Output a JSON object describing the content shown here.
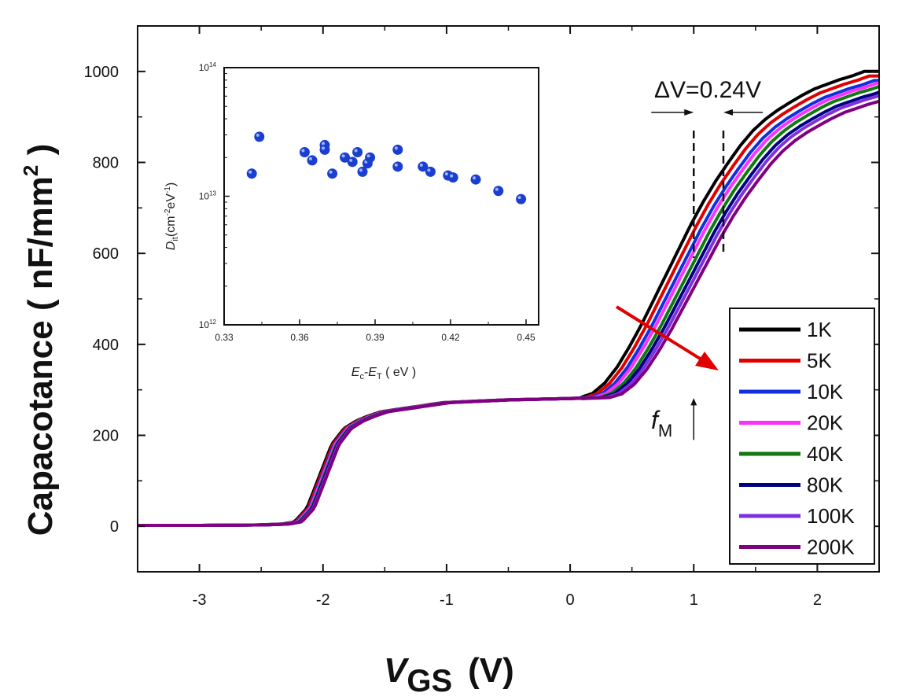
{
  "chart_data": {
    "type": "line",
    "xlabel_main": "V",
    "xlabel_sub": "GS",
    "xlabel_unit": "(V)",
    "ylabel_main": "Capacotance ( nF/mm",
    "ylabel_sup": "2",
    "ylabel_end": " )",
    "xlim": [
      -3.5,
      2.5
    ],
    "ylim": [
      -100,
      1100
    ],
    "x_ticks": [
      -3,
      -2,
      -1,
      0,
      1,
      2
    ],
    "y_ticks": [
      0,
      200,
      400,
      600,
      800,
      1000
    ],
    "legend_position": "bottom-right",
    "series": [
      {
        "name": "1K",
        "color": "#000000",
        "shift": -0.12,
        "top": 1000
      },
      {
        "name": "5K",
        "color": "#e00000",
        "shift": -0.08,
        "top": 990
      },
      {
        "name": "10K",
        "color": "#1030e0",
        "shift": -0.04,
        "top": 980
      },
      {
        "name": "20K",
        "color": "#ff30ff",
        "shift": -0.01,
        "top": 975
      },
      {
        "name": "40K",
        "color": "#107a10",
        "shift": 0.03,
        "top": 970
      },
      {
        "name": "80K",
        "color": "#000080",
        "shift": 0.06,
        "top": 960
      },
      {
        "name": "100K",
        "color": "#8030e0",
        "shift": 0.09,
        "top": 955
      },
      {
        "name": "200K",
        "color": "#800080",
        "shift": 0.12,
        "top": 945
      }
    ],
    "curve_model": {
      "x": [
        -3.5,
        -3.0,
        -2.5,
        -2.3,
        -2.2,
        -2.1,
        -2.0,
        -1.9,
        -1.8,
        -1.7,
        -1.6,
        -1.5,
        -1.2,
        -1.0,
        -0.5,
        0.0,
        0.2,
        0.3,
        0.4,
        0.5,
        0.6,
        0.7,
        0.8,
        0.9,
        1.0,
        1.1,
        1.2,
        1.3,
        1.4,
        1.5,
        1.6,
        1.7,
        1.8,
        1.9,
        2.0,
        2.1,
        2.2,
        2.3,
        2.4,
        2.5
      ],
      "y": [
        2,
        2,
        3,
        5,
        10,
        40,
        110,
        180,
        215,
        232,
        243,
        252,
        264,
        272,
        278,
        281,
        283,
        292,
        315,
        350,
        395,
        445,
        500,
        555,
        610,
        665,
        715,
        760,
        800,
        838,
        870,
        895,
        915,
        932,
        948,
        962,
        972,
        982,
        990,
        1000
      ]
    },
    "annotations": {
      "delta_v": "ΔV=0.24V",
      "delta_v_x1": 1.0,
      "delta_v_x2": 1.24,
      "fm_label": "f",
      "fm_sub": "M",
      "fm_x": 1.0
    },
    "inset": {
      "type": "scatter",
      "xlabel_a": "E",
      "xlabel_a_sub": "c",
      "xlabel_dash": "-",
      "xlabel_b": "E",
      "xlabel_b_sub": "T",
      "xlabel_unit": " ( eV )",
      "ylabel_a": "D",
      "ylabel_a_sub": "it",
      "ylabel_unit": "(cm",
      "ylabel_unit_sup1": "-2",
      "ylabel_unit_mid": "eV",
      "ylabel_unit_sup2": "-1",
      "ylabel_unit_end": ")",
      "xlim": [
        0.33,
        0.455
      ],
      "ylim_log": [
        12,
        14
      ],
      "x_ticks": [
        "0.33",
        "0.36",
        "0.39",
        "0.42",
        "0.45"
      ],
      "y_tick_base": "10",
      "y_tick_exps": [
        "14",
        "13",
        "12"
      ],
      "marker_color": "#1a3fd0",
      "x": [
        0.341,
        0.344,
        0.362,
        0.365,
        0.37,
        0.37,
        0.373,
        0.378,
        0.381,
        0.383,
        0.385,
        0.387,
        0.388,
        0.399,
        0.399,
        0.409,
        0.412,
        0.419,
        0.421,
        0.43,
        0.439,
        0.448
      ],
      "y": [
        15000000000000.0,
        29000000000000.0,
        22000000000000.0,
        19000000000000.0,
        25000000000000.0,
        23000000000000.0,
        15000000000000.0,
        20000000000000.0,
        18500000000000.0,
        22000000000000.0,
        15500000000000.0,
        18000000000000.0,
        20000000000000.0,
        23000000000000.0,
        17000000000000.0,
        17000000000000.0,
        15500000000000.0,
        14500000000000.0,
        14000000000000.0,
        13500000000000.0,
        11000000000000.0,
        9500000000000.0
      ]
    }
  }
}
